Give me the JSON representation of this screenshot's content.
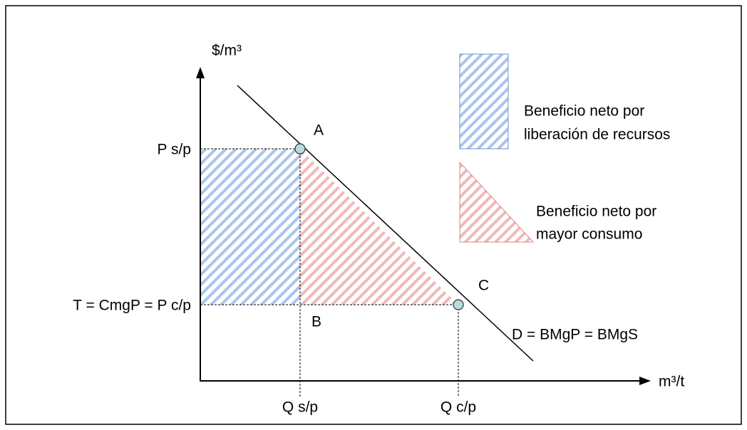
{
  "diagram": {
    "y_axis_label": "$/m³",
    "x_axis_label": "m³/t",
    "y_labels": [
      "P s/p",
      "T = CmgP = P c/p"
    ],
    "x_labels": [
      "Q s/p",
      "Q c/p"
    ],
    "points": [
      "A",
      "B",
      "C"
    ],
    "curve_label": "D = BMgP = BMgS",
    "legend": [
      {
        "lines": [
          "Beneficio neto por",
          "liberación de recursos"
        ]
      },
      {
        "lines": [
          "Beneficio neto por",
          "mayor consumo"
        ]
      }
    ]
  }
}
